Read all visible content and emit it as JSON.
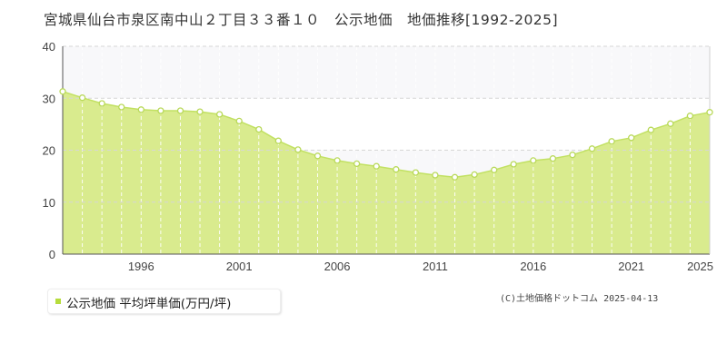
{
  "title": "宮城県仙台市泉区南中山２丁目３３番１０　公示地価　地価推移[1992-2025]",
  "legend": {
    "label": "公示地価 平均坪単価(万円/坪)"
  },
  "credit": "(C)土地価格ドットコム 2025-04-13",
  "colors": {
    "fill": "#d9eb8e",
    "line": "#c2e163",
    "point_stroke": "#b9d95a",
    "marker": "#b6dc3c"
  },
  "chart_data": {
    "type": "area",
    "title": "",
    "xlabel": "",
    "ylabel": "",
    "xlim": [
      1992,
      2025
    ],
    "ylim": [
      0,
      40
    ],
    "yticks": [
      0,
      10,
      20,
      30,
      40
    ],
    "xticks": [
      1996,
      2001,
      2006,
      2011,
      2016,
      2021,
      2025
    ],
    "grid": true,
    "legend_position": "bottom-left",
    "series": [
      {
        "name": "公示地価 平均坪単価(万円/坪)",
        "x": [
          1992,
          1993,
          1994,
          1995,
          1996,
          1997,
          1998,
          1999,
          2000,
          2001,
          2002,
          2003,
          2004,
          2005,
          2006,
          2007,
          2008,
          2009,
          2010,
          2011,
          2012,
          2013,
          2014,
          2015,
          2016,
          2017,
          2018,
          2019,
          2020,
          2021,
          2022,
          2023,
          2024,
          2025
        ],
        "y": [
          31.3,
          30.1,
          29.0,
          28.3,
          27.8,
          27.6,
          27.6,
          27.4,
          26.9,
          25.6,
          24.0,
          21.8,
          20.1,
          18.9,
          18.0,
          17.4,
          16.9,
          16.3,
          15.7,
          15.2,
          14.8,
          15.3,
          16.2,
          17.3,
          18.0,
          18.4,
          19.1,
          20.3,
          21.7,
          22.4,
          23.9,
          25.1,
          26.6,
          27.3
        ]
      }
    ]
  }
}
